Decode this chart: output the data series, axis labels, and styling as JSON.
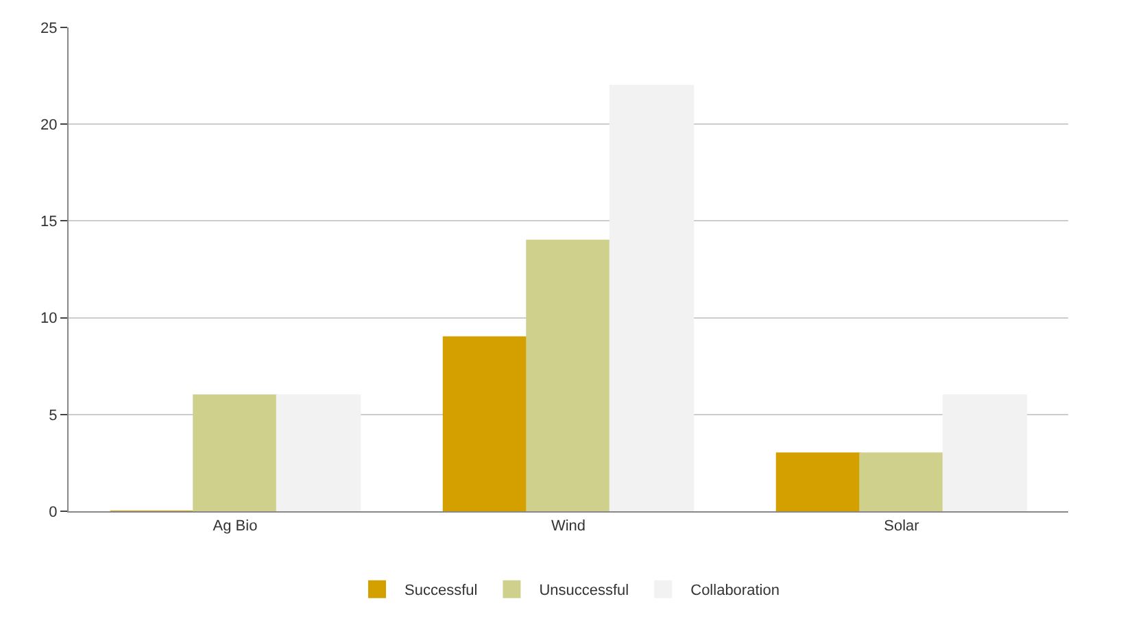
{
  "chart_data": {
    "type": "bar",
    "categories": [
      "Ag Bio",
      "Wind",
      "Solar"
    ],
    "series": [
      {
        "name": "Successful",
        "color": "#d4a000",
        "values": [
          0,
          9,
          3
        ]
      },
      {
        "name": "Unsuccessful",
        "color": "#cfd08c",
        "values": [
          6,
          14,
          3
        ]
      },
      {
        "name": "Collaboration",
        "color": "#f2f2f2",
        "values": [
          6,
          22,
          6
        ]
      }
    ],
    "ylim": [
      0,
      25
    ],
    "yticks": [
      0,
      5,
      10,
      15,
      20,
      25
    ],
    "grid": "y",
    "legend": "bottom"
  }
}
